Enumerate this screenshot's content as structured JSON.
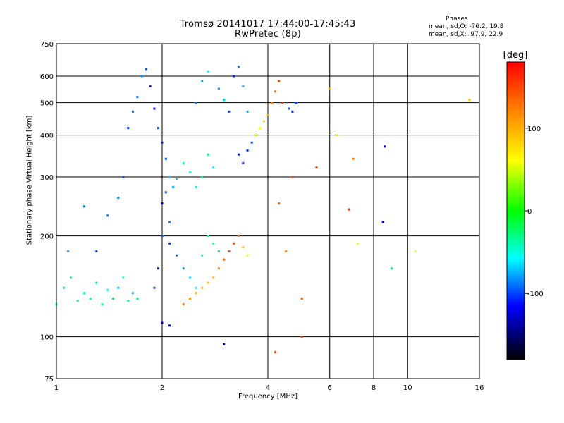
{
  "chart_data": {
    "type": "scatter",
    "title": "Tromsø 20141017 17:44:00-17:45:43",
    "subtitle": "RwPretec (8p)",
    "xlabel": "Frequency [MHz]",
    "ylabel": "Stationary phase Virtual Height [km]",
    "xscale": "log",
    "yscale": "log",
    "xlim": [
      1,
      16
    ],
    "ylim": [
      75,
      750
    ],
    "xticks": [
      1,
      2,
      4,
      6,
      8,
      10,
      16
    ],
    "yticks": [
      75,
      100,
      200,
      300,
      400,
      500,
      600,
      750
    ],
    "grid": true,
    "stats": {
      "heading": "Phases",
      "o_line": "mean, sd,O: -76.2, 19.8",
      "x_line": "mean, sd,X:  97.9, 22.9"
    },
    "colorbar": {
      "label": "[deg]",
      "ticks": [
        100,
        0,
        -100
      ],
      "range": [
        -180,
        180
      ],
      "colors": [
        "#ff0000",
        "#ff8000",
        "#ffff00",
        "#00ff00",
        "#00ffff",
        "#0000ff",
        "#000000"
      ]
    },
    "series": [
      {
        "points": [
          [
            1.0,
            125,
            -60
          ],
          [
            1.05,
            140,
            -40
          ],
          [
            1.1,
            150,
            -30
          ],
          [
            1.15,
            128,
            -50
          ],
          [
            1.2,
            135,
            -35
          ],
          [
            1.25,
            130,
            -55
          ],
          [
            1.3,
            145,
            -45
          ],
          [
            1.35,
            125,
            -40
          ],
          [
            1.4,
            138,
            -60
          ],
          [
            1.45,
            130,
            -20
          ],
          [
            1.5,
            140,
            -70
          ],
          [
            1.55,
            150,
            -50
          ],
          [
            1.6,
            128,
            -35
          ],
          [
            1.65,
            135,
            -75
          ],
          [
            1.7,
            130,
            -25
          ],
          [
            1.08,
            180,
            -80
          ],
          [
            1.2,
            245,
            -90
          ],
          [
            1.3,
            180,
            -100
          ],
          [
            1.4,
            230,
            -95
          ],
          [
            1.5,
            260,
            -90
          ],
          [
            1.55,
            300,
            -100
          ],
          [
            1.6,
            420,
            -110
          ],
          [
            1.65,
            470,
            -90
          ],
          [
            1.7,
            520,
            -95
          ],
          [
            1.75,
            600,
            -85
          ],
          [
            1.8,
            630,
            -100
          ],
          [
            1.85,
            560,
            -110
          ],
          [
            1.9,
            480,
            -120
          ],
          [
            1.95,
            420,
            -105
          ],
          [
            2.0,
            380,
            -110
          ],
          [
            2.05,
            340,
            -95
          ],
          [
            2.1,
            300,
            -70
          ],
          [
            2.15,
            280,
            -80
          ],
          [
            2.2,
            295,
            -75
          ],
          [
            2.3,
            330,
            -60
          ],
          [
            2.4,
            310,
            -50
          ],
          [
            2.5,
            280,
            -55
          ],
          [
            2.6,
            300,
            -45
          ],
          [
            2.7,
            350,
            -40
          ],
          [
            2.8,
            320,
            -65
          ],
          [
            2.5,
            500,
            -90
          ],
          [
            2.6,
            580,
            -80
          ],
          [
            2.7,
            620,
            -60
          ],
          [
            2.9,
            550,
            -85
          ],
          [
            3.0,
            510,
            -70
          ],
          [
            3.1,
            470,
            -100
          ],
          [
            3.2,
            600,
            -110
          ],
          [
            3.3,
            640,
            -90
          ],
          [
            3.4,
            560,
            -80
          ],
          [
            3.5,
            470,
            -75
          ],
          [
            3.3,
            350,
            -115
          ],
          [
            3.4,
            330,
            -110
          ],
          [
            3.5,
            360,
            -105
          ],
          [
            3.6,
            380,
            -100
          ],
          [
            3.7,
            400,
            40
          ],
          [
            3.8,
            420,
            60
          ],
          [
            3.9,
            440,
            80
          ],
          [
            4.0,
            460,
            100
          ],
          [
            4.1,
            500,
            120
          ],
          [
            4.2,
            540,
            130
          ],
          [
            4.3,
            580,
            150
          ],
          [
            4.4,
            500,
            160
          ],
          [
            4.6,
            480,
            -100
          ],
          [
            4.7,
            470,
            -110
          ],
          [
            4.8,
            500,
            -105
          ],
          [
            2.0,
            200,
            -100
          ],
          [
            2.1,
            190,
            -110
          ],
          [
            2.2,
            175,
            -90
          ],
          [
            2.3,
            160,
            -80
          ],
          [
            2.4,
            150,
            -70
          ],
          [
            2.5,
            140,
            -60
          ],
          [
            2.6,
            175,
            -50
          ],
          [
            2.7,
            200,
            -40
          ],
          [
            2.8,
            190,
            -30
          ],
          [
            2.9,
            180,
            -20
          ],
          [
            2.3,
            125,
            120
          ],
          [
            2.4,
            130,
            110
          ],
          [
            2.5,
            135,
            100
          ],
          [
            2.6,
            140,
            90
          ],
          [
            2.7,
            145,
            80
          ],
          [
            2.8,
            150,
            100
          ],
          [
            2.9,
            160,
            110
          ],
          [
            3.0,
            170,
            130
          ],
          [
            3.1,
            180,
            140
          ],
          [
            3.2,
            190,
            150
          ],
          [
            3.3,
            200,
            120
          ],
          [
            3.4,
            185,
            90
          ],
          [
            3.5,
            175,
            60
          ],
          [
            2.0,
            110,
            -120
          ],
          [
            2.1,
            108,
            -115
          ],
          [
            1.9,
            140,
            -100
          ],
          [
            1.95,
            160,
            -110
          ],
          [
            2.0,
            250,
            -120
          ],
          [
            2.05,
            270,
            -100
          ],
          [
            2.1,
            220,
            -90
          ],
          [
            4.3,
            250,
            130
          ],
          [
            4.5,
            180,
            120
          ],
          [
            4.7,
            300,
            140
          ],
          [
            5.0,
            130,
            140
          ],
          [
            5.5,
            320,
            150
          ],
          [
            6.0,
            550,
            100
          ],
          [
            6.3,
            400,
            80
          ],
          [
            6.8,
            240,
            160
          ],
          [
            7.0,
            340,
            120
          ],
          [
            7.2,
            190,
            50
          ],
          [
            8.5,
            220,
            -120
          ],
          [
            8.6,
            370,
            -130
          ],
          [
            9.0,
            160,
            -30
          ],
          [
            10.5,
            180,
            60
          ],
          [
            15,
            510,
            90
          ],
          [
            3.0,
            95,
            -140
          ],
          [
            5.0,
            100,
            150
          ],
          [
            4.2,
            90,
            140
          ]
        ]
      }
    ]
  }
}
